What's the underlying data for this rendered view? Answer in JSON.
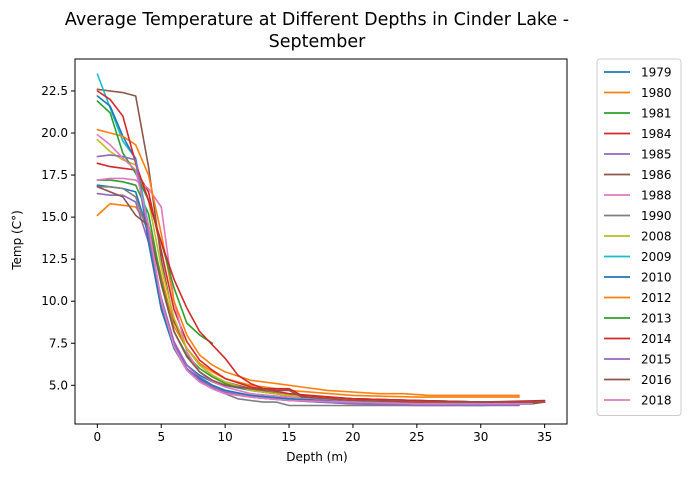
{
  "chart_data": {
    "type": "line",
    "title_line1": "Average Temperature at Different Depths in Cinder Lake -",
    "title_line2": "September",
    "xlabel": "Depth (m)",
    "ylabel": "Temp (C°)",
    "xlim": [
      -1.75,
      36.75
    ],
    "ylim": [
      2.7,
      24.4
    ],
    "xticks": [
      0,
      5,
      10,
      15,
      20,
      25,
      30,
      35
    ],
    "xtick_labels": [
      "0",
      "5",
      "10",
      "15",
      "20",
      "25",
      "30",
      "35"
    ],
    "yticks": [
      5.0,
      7.5,
      10.0,
      12.5,
      15.0,
      17.5,
      20.0,
      22.5
    ],
    "ytick_labels": [
      "5.0",
      "7.5",
      "10.0",
      "12.5",
      "15.0",
      "17.5",
      "20.0",
      "22.5"
    ],
    "grid": false,
    "legend_position": "outside-right",
    "series": [
      {
        "name": "1979",
        "color": "#1f77b4",
        "x": [
          0,
          1,
          2,
          3,
          4,
          5,
          6,
          7,
          8,
          9,
          10,
          12,
          15,
          20,
          25,
          30,
          31
        ],
        "y": [
          16.9,
          16.8,
          16.7,
          16.5,
          14.0,
          10.0,
          7.5,
          6.2,
          5.6,
          5.2,
          5.0,
          4.7,
          4.4,
          4.2,
          4.1,
          4.0,
          4.0
        ]
      },
      {
        "name": "1980",
        "color": "#ff7f0e",
        "x": [
          0,
          1,
          2,
          3,
          4,
          5,
          6,
          7,
          8,
          9,
          10,
          12,
          15,
          20,
          25,
          30,
          33
        ],
        "y": [
          15.1,
          15.8,
          15.7,
          15.6,
          14.5,
          11.5,
          8.5,
          7.2,
          6.3,
          5.8,
          5.4,
          5.0,
          4.7,
          4.4,
          4.3,
          4.3,
          4.3
        ]
      },
      {
        "name": "1981",
        "color": "#2ca02c",
        "x": [
          0,
          1,
          2,
          3,
          4,
          5,
          6,
          7,
          8,
          9,
          10,
          12,
          15,
          20,
          25,
          30
        ],
        "y": [
          17.2,
          17.2,
          17.1,
          16.9,
          15.2,
          11.2,
          8.2,
          6.8,
          6.0,
          5.5,
          5.1,
          4.7,
          4.4,
          4.2,
          4.1,
          4.0
        ]
      },
      {
        "name": "1984",
        "color": "#d62728",
        "x": [
          0,
          1,
          2,
          3,
          4,
          5,
          6,
          7,
          8,
          9,
          10,
          12,
          15,
          20,
          25,
          30,
          35
        ],
        "y": [
          18.2,
          18.0,
          17.9,
          17.8,
          16.5,
          13.0,
          9.5,
          7.6,
          6.5,
          5.9,
          5.4,
          4.9,
          4.5,
          4.2,
          4.1,
          4.0,
          4.0
        ]
      },
      {
        "name": "1985",
        "color": "#9467bd",
        "x": [
          0,
          1,
          2,
          3,
          4,
          5,
          6,
          7,
          8,
          9,
          10,
          12,
          15,
          20,
          25,
          30,
          34
        ],
        "y": [
          16.4,
          16.3,
          16.3,
          15.9,
          13.5,
          10.2,
          7.6,
          6.2,
          5.5,
          5.0,
          4.7,
          4.4,
          4.2,
          4.0,
          3.9,
          3.9,
          3.9
        ]
      },
      {
        "name": "1986",
        "color": "#8c564b",
        "x": [
          0,
          1,
          2,
          3,
          4,
          5,
          6,
          7,
          8,
          9,
          10,
          12,
          15,
          20,
          25,
          30,
          34,
          35
        ],
        "y": [
          22.6,
          22.5,
          22.4,
          22.2,
          18.0,
          12.5,
          8.8,
          7.2,
          6.2,
          5.6,
          5.2,
          4.8,
          4.4,
          4.1,
          4.0,
          3.9,
          3.9,
          4.0
        ]
      },
      {
        "name": "1988",
        "color": "#e377c2",
        "x": [
          0,
          1,
          2,
          3,
          4,
          5,
          6,
          7,
          8,
          9,
          10,
          12,
          15,
          20,
          25,
          30,
          34
        ],
        "y": [
          17.2,
          17.3,
          17.3,
          17.2,
          16.7,
          15.6,
          10.0,
          7.0,
          5.8,
          5.2,
          4.9,
          4.5,
          4.3,
          4.1,
          4.0,
          3.9,
          3.9
        ]
      },
      {
        "name": "1990",
        "color": "#7f7f7f",
        "x": [
          0,
          1,
          2,
          3,
          4,
          5,
          6,
          7,
          8,
          9,
          10,
          11,
          12,
          13,
          14,
          15,
          20,
          25,
          30,
          34
        ],
        "y": [
          16.8,
          16.8,
          16.7,
          16.2,
          14.0,
          9.8,
          7.2,
          5.9,
          5.2,
          4.8,
          4.5,
          4.2,
          4.1,
          4.0,
          4.0,
          3.8,
          3.8,
          3.8,
          3.8,
          3.9
        ]
      },
      {
        "name": "2008",
        "color": "#bcbd22",
        "x": [
          0,
          1,
          2,
          3,
          4,
          5,
          6,
          7,
          8,
          9,
          10,
          12,
          15,
          20,
          25,
          30,
          34
        ],
        "y": [
          19.6,
          18.9,
          18.4,
          18.1,
          16.0,
          12.0,
          9.0,
          7.2,
          6.2,
          5.6,
          5.2,
          4.7,
          4.4,
          4.1,
          4.0,
          3.9,
          3.9
        ]
      },
      {
        "name": "2009",
        "color": "#17becf",
        "x": [
          0,
          1,
          2,
          3,
          4,
          5,
          6,
          7,
          8,
          9,
          10,
          12,
          15,
          20,
          25,
          30,
          34
        ],
        "y": [
          23.5,
          21.5,
          19.5,
          18.5,
          14.5,
          10.0,
          7.4,
          6.0,
          5.3,
          4.9,
          4.6,
          4.3,
          4.1,
          3.9,
          3.9,
          3.8,
          3.9
        ]
      },
      {
        "name": "2010",
        "color": "#1f77b4",
        "x": [
          0,
          1,
          2,
          3,
          4,
          5,
          6,
          7,
          8,
          9,
          10,
          12,
          15,
          20,
          25,
          30,
          34
        ],
        "y": [
          22.2,
          21.6,
          19.8,
          18.4,
          13.5,
          9.5,
          7.2,
          6.0,
          5.4,
          5.0,
          4.7,
          4.4,
          4.2,
          4.0,
          3.9,
          3.9,
          3.9
        ]
      },
      {
        "name": "2012",
        "color": "#ff7f0e",
        "x": [
          0,
          1,
          2,
          3,
          4,
          5,
          6,
          7,
          8,
          9,
          10,
          12,
          14,
          16,
          18,
          20,
          22,
          24,
          26,
          28,
          30,
          33
        ],
        "y": [
          20.2,
          20.0,
          19.8,
          19.3,
          17.5,
          14.0,
          10.0,
          8.0,
          6.8,
          6.2,
          5.8,
          5.3,
          5.1,
          4.9,
          4.7,
          4.6,
          4.5,
          4.5,
          4.4,
          4.4,
          4.4,
          4.4
        ]
      },
      {
        "name": "2013",
        "color": "#2ca02c",
        "x": [
          0,
          1,
          2,
          3,
          4,
          5,
          6,
          7,
          8,
          9
        ],
        "y": [
          21.9,
          21.2,
          18.8,
          17.6,
          16.0,
          13.5,
          10.8,
          8.7,
          8.0,
          7.5
        ]
      },
      {
        "name": "2014",
        "color": "#d62728",
        "x": [
          0,
          1,
          2,
          3,
          4,
          5,
          6,
          7,
          8,
          9,
          10,
          11,
          12,
          13,
          14,
          15,
          16,
          20,
          25,
          30,
          35
        ],
        "y": [
          22.5,
          22.0,
          21.0,
          18.2,
          16.0,
          13.5,
          11.3,
          9.6,
          8.2,
          7.4,
          6.6,
          5.6,
          5.1,
          4.8,
          4.8,
          4.8,
          4.4,
          4.2,
          4.1,
          4.0,
          4.1
        ]
      },
      {
        "name": "2015",
        "color": "#9467bd",
        "x": [
          0,
          1,
          2,
          3,
          4,
          5,
          6,
          7,
          8,
          9,
          10,
          12,
          15,
          20,
          25,
          30,
          33
        ],
        "y": [
          18.6,
          18.7,
          18.6,
          18.4,
          14.0,
          10.0,
          7.4,
          6.0,
          5.3,
          4.9,
          4.6,
          4.3,
          4.1,
          3.9,
          3.8,
          3.8,
          3.8
        ]
      },
      {
        "name": "2016",
        "color": "#8c564b",
        "x": [
          0,
          1,
          2,
          3,
          4,
          5,
          6,
          7,
          8,
          9,
          10,
          12,
          14,
          15,
          16,
          20,
          25,
          30,
          35
        ],
        "y": [
          16.8,
          16.5,
          16.2,
          15.1,
          14.5,
          11.0,
          8.2,
          6.7,
          5.8,
          5.3,
          5.0,
          4.8,
          4.7,
          4.7,
          4.3,
          4.1,
          4.0,
          4.0,
          4.0
        ]
      },
      {
        "name": "2018",
        "color": "#e377c2",
        "x": [
          0,
          1,
          2,
          3,
          4,
          5,
          6,
          7,
          8,
          9,
          10,
          12,
          15,
          20,
          25,
          30,
          34
        ],
        "y": [
          19.9,
          19.3,
          18.5,
          17.8,
          14.5,
          10.0,
          7.3,
          5.9,
          5.2,
          4.8,
          4.5,
          4.3,
          4.1,
          4.0,
          3.9,
          3.9,
          3.9
        ]
      }
    ]
  }
}
